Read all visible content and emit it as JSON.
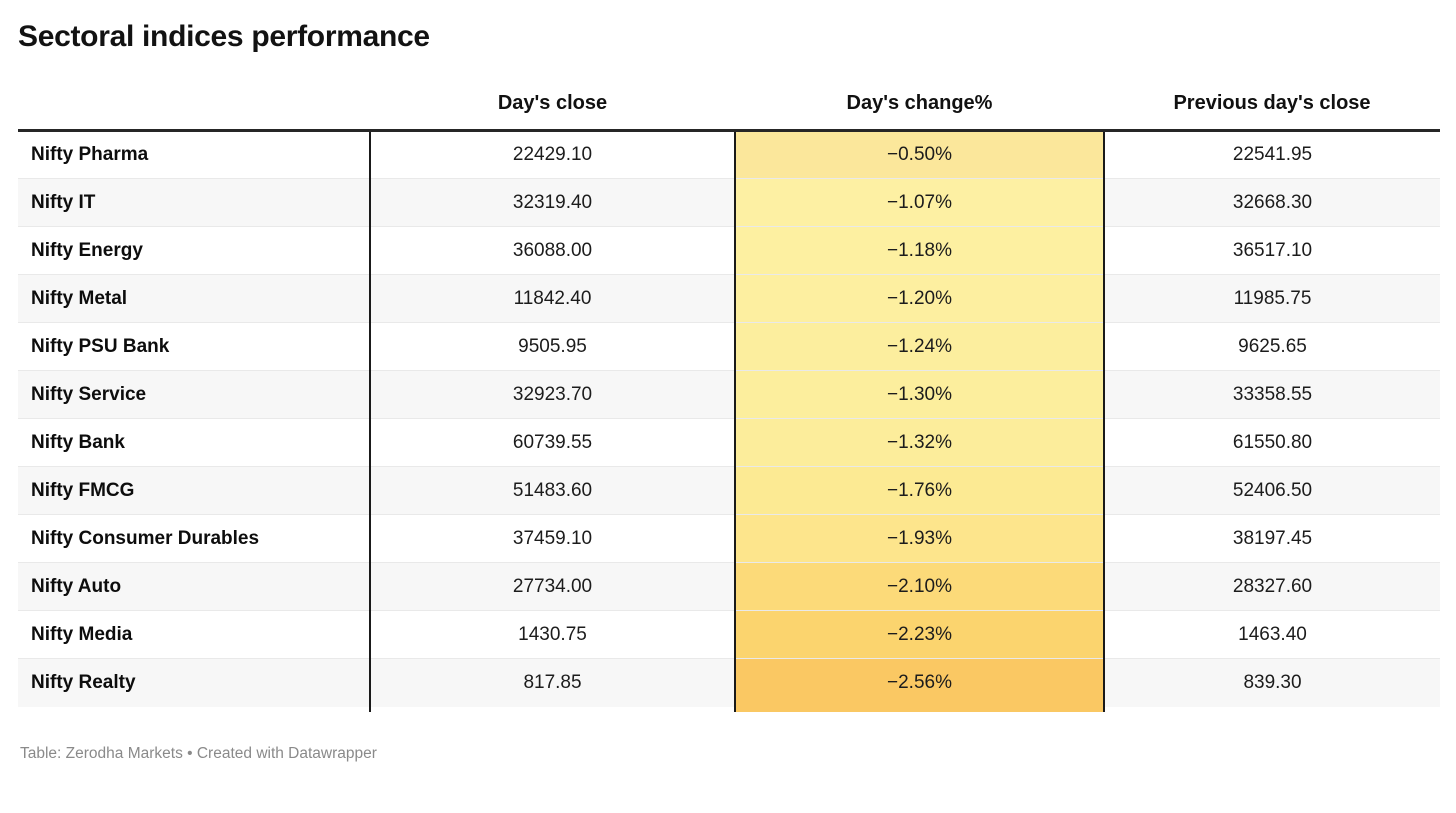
{
  "title": "Sectoral indices performance",
  "table": {
    "headers": {
      "name": "",
      "close": "Day's close",
      "change": "Day's change%",
      "prev": "Previous day's close"
    },
    "rows": [
      {
        "name": "Nifty Pharma",
        "close": "22429.10",
        "change": "−0.50%",
        "prev": "22541.95",
        "change_bg": "#fbe79b"
      },
      {
        "name": "Nifty IT",
        "close": "32319.40",
        "change": "−1.07%",
        "prev": "32668.30",
        "change_bg": "#fdf0a3"
      },
      {
        "name": "Nifty Energy",
        "close": "36088.00",
        "change": "−1.18%",
        "prev": "36517.10",
        "change_bg": "#fdf0a1"
      },
      {
        "name": "Nifty Metal",
        "close": "11842.40",
        "change": "−1.20%",
        "prev": "11985.75",
        "change_bg": "#fdefa0"
      },
      {
        "name": "Nifty PSU Bank",
        "close": "9505.95",
        "change": "−1.24%",
        "prev": "9625.65",
        "change_bg": "#fcee9e"
      },
      {
        "name": "Nifty Service",
        "close": "32923.70",
        "change": "−1.30%",
        "prev": "33358.55",
        "change_bg": "#fcee9d"
      },
      {
        "name": "Nifty Bank",
        "close": "60739.55",
        "change": "−1.32%",
        "prev": "61550.80",
        "change_bg": "#fced9b"
      },
      {
        "name": "Nifty FMCG",
        "close": "51483.60",
        "change": "−1.76%",
        "prev": "52406.50",
        "change_bg": "#fcea93"
      },
      {
        "name": "Nifty Consumer Durables",
        "close": "37459.10",
        "change": "−1.93%",
        "prev": "38197.45",
        "change_bg": "#fde58c"
      },
      {
        "name": "Nifty Auto",
        "close": "27734.00",
        "change": "−2.10%",
        "prev": "28327.60",
        "change_bg": "#fcda79"
      },
      {
        "name": "Nifty Media",
        "close": "1430.75",
        "change": "−2.23%",
        "prev": "1463.40",
        "change_bg": "#fbd46e"
      },
      {
        "name": "Nifty Realty",
        "close": "817.85",
        "change": "−2.56%",
        "prev": "839.30",
        "change_bg": "#fac863"
      }
    ]
  },
  "footer": "Table: Zerodha Markets • Created with Datawrapper",
  "colors": {
    "heatmap_min": "#fdf0a3",
    "heatmap_max": "#fac863",
    "column_border": "#1a1a1a",
    "stripe": "#f7f7f7"
  },
  "chart_data": {
    "type": "table",
    "title": "Sectoral indices performance",
    "columns": [
      "",
      "Day's close",
      "Day's change%",
      "Previous day's close"
    ],
    "rows": [
      [
        "Nifty Pharma",
        22429.1,
        -0.5,
        22541.95
      ],
      [
        "Nifty IT",
        32319.4,
        -1.07,
        32668.3
      ],
      [
        "Nifty Energy",
        36088.0,
        -1.18,
        36517.1
      ],
      [
        "Nifty Metal",
        11842.4,
        -1.2,
        11985.75
      ],
      [
        "Nifty PSU Bank",
        9505.95,
        -1.24,
        9625.65
      ],
      [
        "Nifty Service",
        32923.7,
        -1.3,
        33358.55
      ],
      [
        "Nifty Bank",
        60739.55,
        -1.32,
        61550.8
      ],
      [
        "Nifty FMCG",
        51483.6,
        -1.76,
        52406.5
      ],
      [
        "Nifty Consumer Durables",
        37459.1,
        -1.93,
        38197.45
      ],
      [
        "Nifty Auto",
        27734.0,
        -2.1,
        28327.6
      ],
      [
        "Nifty Media",
        1430.75,
        -2.23,
        1463.4
      ],
      [
        "Nifty Realty",
        817.85,
        -2.56,
        839.3
      ]
    ],
    "heatmap_column": "Day's change%",
    "source": "Table: Zerodha Markets • Created with Datawrapper"
  }
}
